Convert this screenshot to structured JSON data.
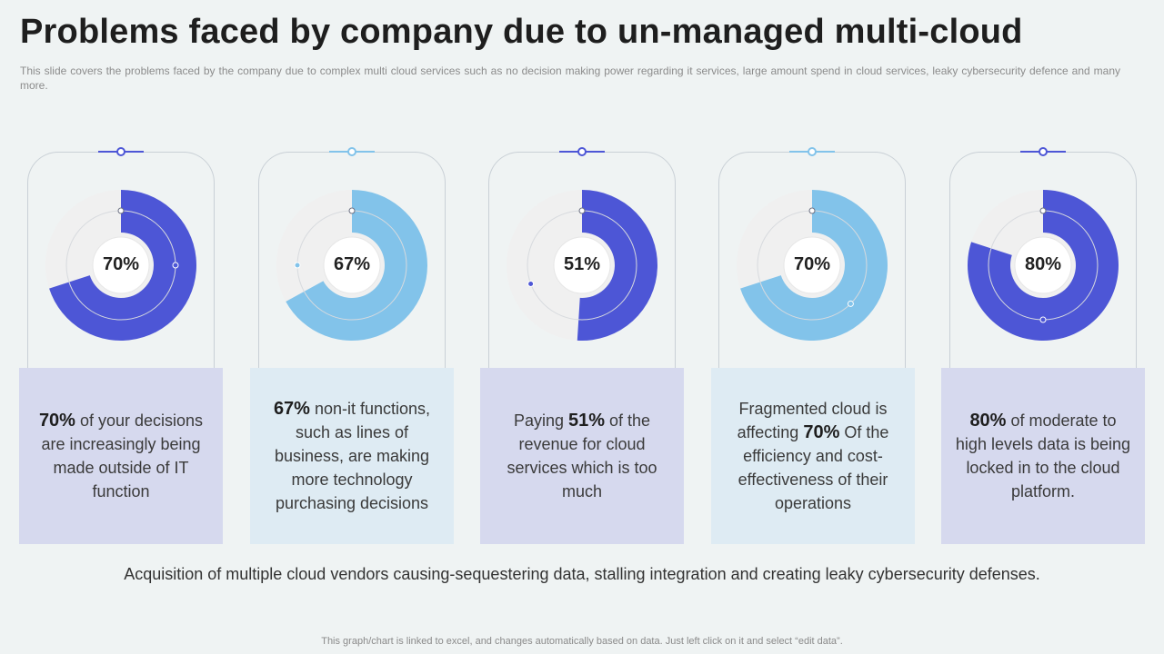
{
  "title": "Problems faced by company due to un-managed multi-cloud",
  "subtitle": "This slide covers the problems faced by the company due to complex multi cloud services such as no decision making power regarding it services, large amount spend in cloud services, leaky cybersecurity defence and many more.",
  "colors": {
    "dark": "#4d56d6",
    "light": "#82c3ea",
    "track": "#f0f0f0"
  },
  "chart_data": {
    "type": "donut",
    "series": [
      {
        "label": "70%",
        "value": 70,
        "color": "dark"
      },
      {
        "label": "67%",
        "value": 67,
        "color": "light"
      },
      {
        "label": "51%",
        "value": 51,
        "color": "dark"
      },
      {
        "label": "70%",
        "value": 70,
        "color": "light"
      },
      {
        "label": "80%",
        "value": 80,
        "color": "dark"
      }
    ]
  },
  "cards": [
    {
      "bold": "70%",
      "pre": "",
      "post": " of your decisions are increasingly being made outside of IT function"
    },
    {
      "bold": "67%",
      "pre": "",
      "post": " non-it functions, such as lines of business, are making more technology purchasing decisions"
    },
    {
      "bold": "51%",
      "pre": "Paying ",
      "post": " of the revenue for cloud services which is too much"
    },
    {
      "bold": "70%",
      "pre": "Fragmented cloud is affecting ",
      "post": " Of the efficiency and cost-effectiveness of their operations"
    },
    {
      "bold": "80%",
      "pre": "",
      "post": " of moderate to high levels data is being locked in to the cloud platform."
    }
  ],
  "bottom_text": "Acquisition of multiple cloud vendors causing-sequestering data, stalling integration and creating leaky cybersecurity defenses.",
  "footnote": "This graph/chart is linked to excel, and changes automatically based on data. Just left click on it and select “edit data”."
}
